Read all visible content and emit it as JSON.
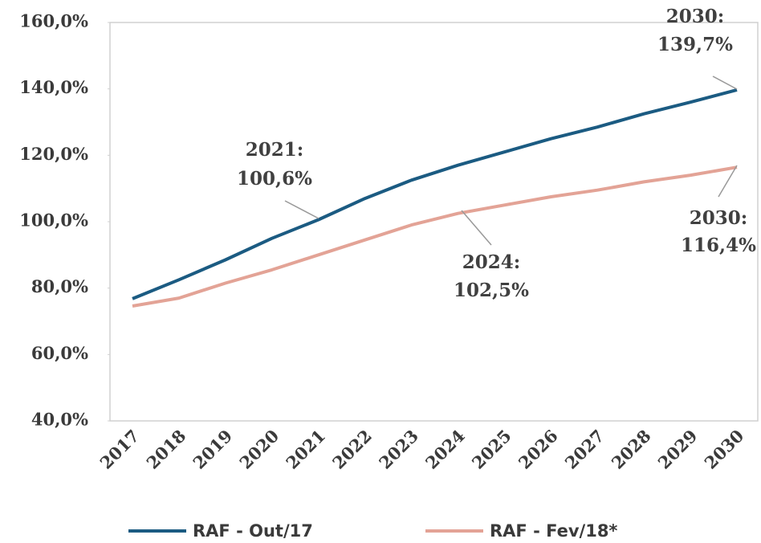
{
  "chart_data": {
    "type": "line",
    "categories": [
      "2017",
      "2018",
      "2019",
      "2020",
      "2021",
      "2022",
      "2023",
      "2024",
      "2025",
      "2026",
      "2027",
      "2028",
      "2029",
      "2030"
    ],
    "series": [
      {
        "name": "RAF - Out/17",
        "color": "#1b5b82",
        "values": [
          76.8,
          82.5,
          88.5,
          95,
          100.6,
          107,
          112.5,
          117,
          121,
          125,
          128.5,
          132.5,
          136,
          139.7
        ]
      },
      {
        "name": "RAF - Fev/18*",
        "color": "#e3a396",
        "values": [
          74.6,
          77,
          81.5,
          85.5,
          90,
          94.5,
          99,
          102.5,
          105,
          107.5,
          109.5,
          112,
          114,
          116.4
        ]
      }
    ],
    "ylim": [
      40,
      160
    ],
    "yticks": [
      {
        "value": 40,
        "label": "40,0%"
      },
      {
        "value": 60,
        "label": "60,0%"
      },
      {
        "value": 80,
        "label": "80,0%"
      },
      {
        "value": 100,
        "label": "100,0%"
      },
      {
        "value": 120,
        "label": "120,0%"
      },
      {
        "value": 140,
        "label": "140,0%"
      },
      {
        "value": 160,
        "label": "160,0%"
      }
    ],
    "annotations": [
      {
        "lines": [
          "2021:",
          "100,6%"
        ]
      },
      {
        "lines": [
          "2024:",
          "102,5%"
        ]
      },
      {
        "lines": [
          "2030:",
          "139,7%"
        ]
      },
      {
        "lines": [
          "2030:",
          "116,4%"
        ]
      }
    ],
    "legend": "bottom"
  }
}
